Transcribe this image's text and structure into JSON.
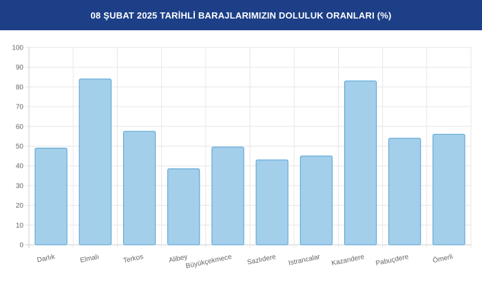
{
  "header": {
    "title": "08 ŞUBAT 2025 TARİHLİ BARAJLARIMIZIN DOLULUK ORANLARI (%)"
  },
  "colors": {
    "header_bg": "#1c3f87",
    "bar_fill": "#a4cfea",
    "bar_stroke": "#4f9fd4",
    "grid": "#e6e6e6"
  },
  "chart_data": {
    "type": "bar",
    "title": "08 ŞUBAT 2025 TARİHLİ BARAJLARIMIZIN DOLULUK ORANLARI (%)",
    "categories": [
      "Darlık",
      "Elmalı",
      "Terkos",
      "Alibey",
      "Büyükçekmece",
      "Sazlıdere",
      "Istrancalar",
      "Kazandere",
      "Pabuçdere",
      "Ömerli"
    ],
    "values": [
      49,
      84,
      57.5,
      38.5,
      49.5,
      43,
      45,
      83,
      54,
      56
    ],
    "xlabel": "",
    "ylabel": "",
    "ylim": [
      0,
      100
    ],
    "yticks": [
      0,
      10,
      20,
      30,
      40,
      50,
      60,
      70,
      80,
      90,
      100
    ],
    "grid": true,
    "legend": "none"
  }
}
